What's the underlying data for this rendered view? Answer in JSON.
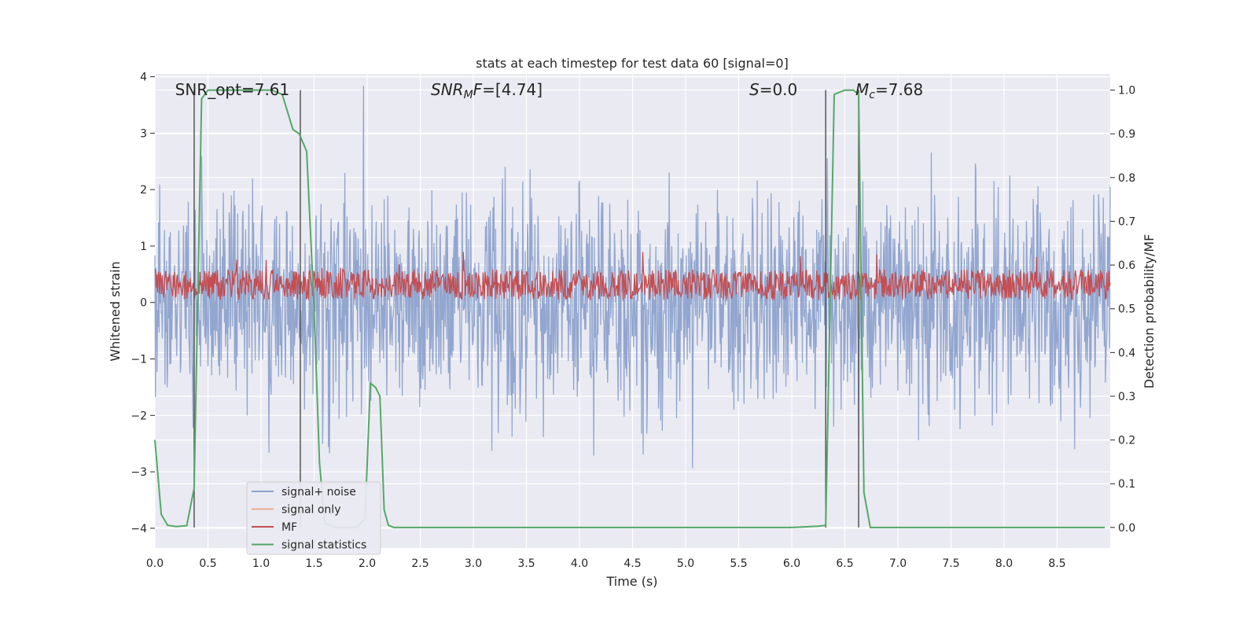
{
  "chart_data": {
    "type": "line",
    "title": "stats at each timestep for test data 60 [signal=0]",
    "xlabel": "Time (s)",
    "ylabel_left": "Whitened strain",
    "ylabel_right": "Detection probability/MF",
    "xlim": [
      0.0,
      9.0
    ],
    "ylim_left": [
      -4.35,
      4.05
    ],
    "ylim_right": [
      -0.047,
      1.037
    ],
    "x_ticks": [
      "0.0",
      "0.5",
      "1.0",
      "1.5",
      "2.0",
      "2.5",
      "3.0",
      "3.5",
      "4.0",
      "4.5",
      "5.0",
      "5.5",
      "6.0",
      "6.5",
      "7.0",
      "7.5",
      "8.0",
      "8.5"
    ],
    "y_ticks_left": [
      "4",
      "3",
      "2",
      "1",
      "0",
      "−1",
      "−2",
      "−3",
      "−4"
    ],
    "y_ticks_right": [
      "1.0",
      "0.9",
      "0.8",
      "0.7",
      "0.6",
      "0.5",
      "0.4",
      "0.3",
      "0.2",
      "0.1",
      "0.0"
    ],
    "grid": true,
    "legend": {
      "placement": "lower-left",
      "entries": [
        {
          "label": "signal+ noise",
          "color": "#8da2cc"
        },
        {
          "label": "signal only",
          "color": "#eea98e"
        },
        {
          "label": "MF",
          "color": "#c44e52"
        },
        {
          "label": "signal statistics",
          "color": "#55a868"
        }
      ]
    },
    "annotations": [
      {
        "text": "SNR_opt=7.61",
        "x": 0.19
      },
      {
        "text": "SNR_MF=[4.74]",
        "x": 2.6
      },
      {
        "text": "S=0.0",
        "x": 5.6
      },
      {
        "text": "M_c=7.68",
        "x": 6.6
      }
    ],
    "vertical_lines_x": [
      0.37,
      1.37,
      6.32,
      6.63
    ],
    "series": [
      {
        "name": "signal+ noise",
        "color": "#8da2cc",
        "axis": "left",
        "description": "dense whitened noise, roughly within -2.5 to 2.5 with spikes to about +/-3.9"
      },
      {
        "name": "MF",
        "color": "#c44e52",
        "axis": "right",
        "description": "matched-filter output fluctuating around 0.55, between about 0.52 and 0.62"
      },
      {
        "name": "signal statistics",
        "color": "#55a868",
        "axis": "right",
        "x": [
          0.0,
          0.06,
          0.12,
          0.2,
          0.3,
          0.37,
          0.44,
          0.5,
          0.6,
          0.8,
          1.0,
          1.1,
          1.2,
          1.3,
          1.36,
          1.43,
          1.5,
          1.55,
          1.6,
          1.7,
          1.8,
          1.9,
          1.98,
          2.03,
          2.08,
          2.12,
          2.16,
          2.2,
          2.25,
          2.4,
          3.0,
          4.0,
          5.0,
          6.0,
          6.25,
          6.32,
          6.4,
          6.5,
          6.58,
          6.63,
          6.68,
          6.74,
          6.8,
          7.0,
          8.0,
          8.95
        ],
        "y": [
          0.2,
          0.03,
          0.005,
          0.002,
          0.004,
          0.09,
          0.98,
          1.0,
          1.0,
          1.0,
          1.0,
          1.0,
          0.99,
          0.91,
          0.9,
          0.86,
          0.5,
          0.15,
          0.01,
          0.0,
          0.0,
          0.0,
          0.02,
          0.33,
          0.32,
          0.3,
          0.04,
          0.005,
          0.0,
          0.0,
          0.0,
          0.0,
          0.0,
          0.0,
          0.003,
          0.005,
          0.99,
          1.0,
          1.0,
          0.99,
          0.08,
          0.0,
          0.0,
          0.0,
          0.0,
          0.0
        ]
      }
    ]
  }
}
